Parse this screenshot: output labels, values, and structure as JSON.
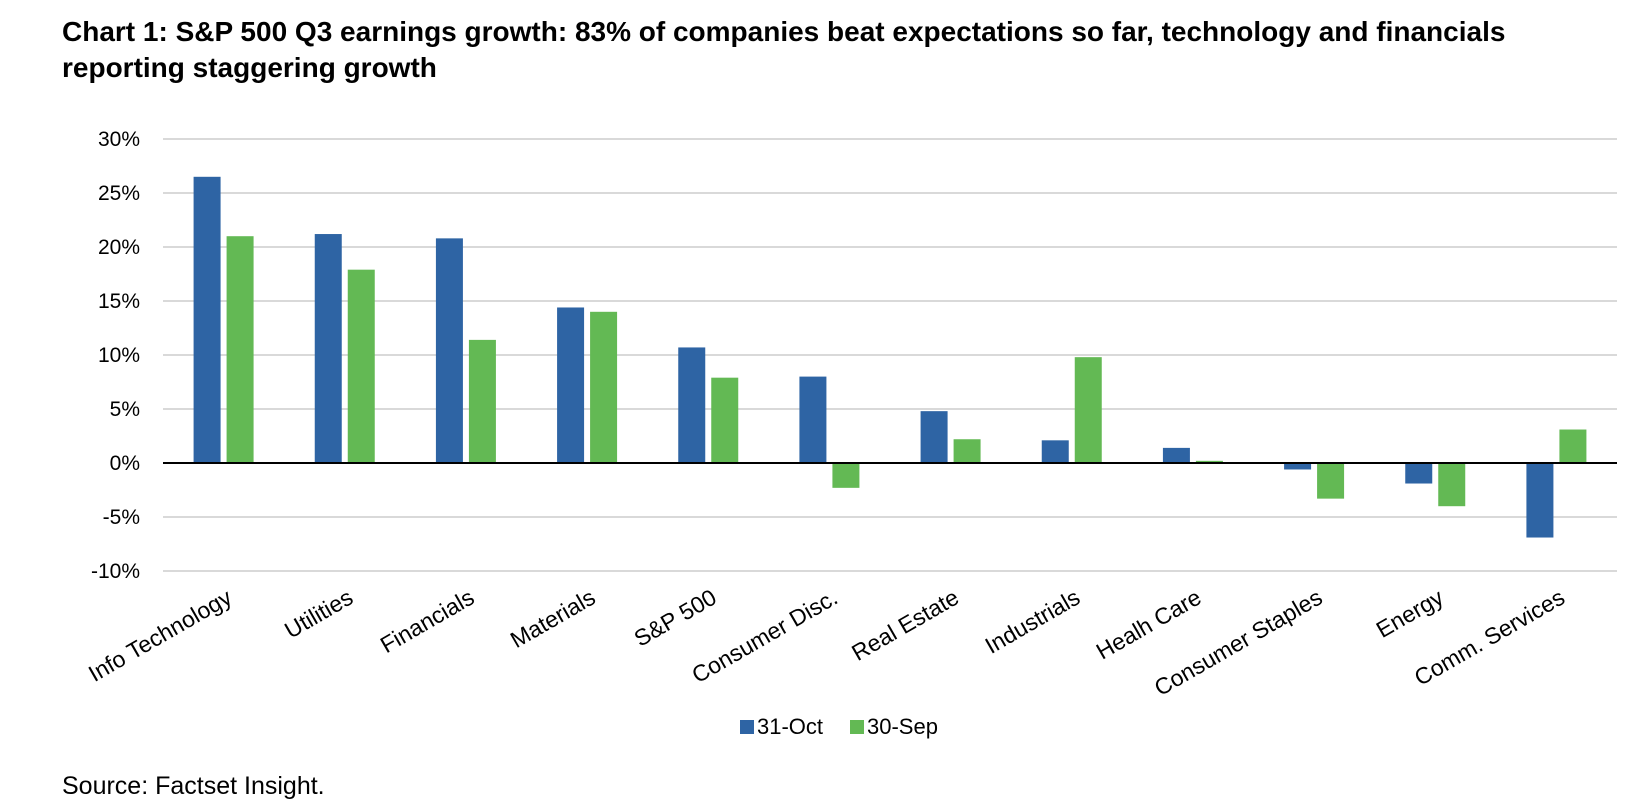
{
  "chart_data": {
    "type": "bar",
    "title": "Chart 1: S&P 500 Q3 earnings growth: 83% of companies beat expectations so far, technology and financials reporting staggering growth",
    "xlabel": "",
    "ylabel": "",
    "ylim": [
      -10,
      30
    ],
    "yticks": [
      30,
      25,
      20,
      15,
      10,
      5,
      0,
      -5,
      -10
    ],
    "ytick_labels": [
      "30%",
      "25%",
      "20%",
      "15%",
      "10%",
      "5%",
      "0%",
      "-5%",
      "-10%"
    ],
    "grid": true,
    "legend_position": "bottom-center",
    "categories": [
      "Info Technology",
      "Utilities",
      "Financials",
      "Materials",
      "S&P 500",
      "Consumer Disc.",
      "Real Estate",
      "Industrials",
      "Healh Care",
      "Consumer Staples",
      "Energy",
      "Comm. Services"
    ],
    "series": [
      {
        "name": "31-Oct",
        "color": "#2E64A4",
        "values": [
          26.5,
          21.2,
          20.8,
          14.4,
          10.7,
          8.0,
          4.8,
          2.1,
          1.4,
          -0.6,
          -1.9,
          -6.9
        ]
      },
      {
        "name": "30-Sep",
        "color": "#63B954",
        "values": [
          21.0,
          17.9,
          11.4,
          14.0,
          7.9,
          -2.3,
          2.2,
          9.8,
          0.2,
          -3.3,
          -4.0,
          3.1
        ]
      }
    ],
    "source": "Source: Factset Insight."
  },
  "colors": {
    "grid": "#D9D9D9",
    "zero_line": "#000000"
  }
}
